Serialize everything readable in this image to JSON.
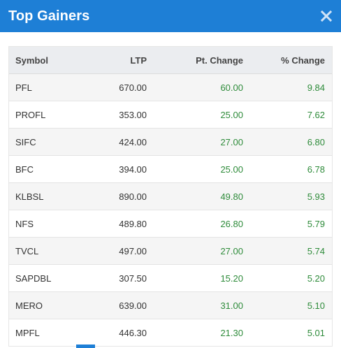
{
  "modal": {
    "title": "Top Gainers",
    "close_icon": "close-x-icon"
  },
  "table": {
    "headers": {
      "symbol": "Symbol",
      "ltp": "LTP",
      "pt_change": "Pt. Change",
      "pct_change": "% Change"
    },
    "rows": [
      {
        "symbol": "PFL",
        "ltp": "670.00",
        "pt_change": "60.00",
        "pct_change": "9.84"
      },
      {
        "symbol": "PROFL",
        "ltp": "353.00",
        "pt_change": "25.00",
        "pct_change": "7.62"
      },
      {
        "symbol": "SIFC",
        "ltp": "424.00",
        "pt_change": "27.00",
        "pct_change": "6.80"
      },
      {
        "symbol": "BFC",
        "ltp": "394.00",
        "pt_change": "25.00",
        "pct_change": "6.78"
      },
      {
        "symbol": "KLBSL",
        "ltp": "890.00",
        "pt_change": "49.80",
        "pct_change": "5.93"
      },
      {
        "symbol": "NFS",
        "ltp": "489.80",
        "pt_change": "26.80",
        "pct_change": "5.79"
      },
      {
        "symbol": "TVCL",
        "ltp": "497.00",
        "pt_change": "27.00",
        "pct_change": "5.74"
      },
      {
        "symbol": "SAPDBL",
        "ltp": "307.50",
        "pt_change": "15.20",
        "pct_change": "5.20"
      },
      {
        "symbol": "MERO",
        "ltp": "639.00",
        "pt_change": "31.00",
        "pct_change": "5.10"
      },
      {
        "symbol": "MPFL",
        "ltp": "446.30",
        "pt_change": "21.30",
        "pct_change": "5.01"
      }
    ]
  },
  "colors": {
    "header_bg": "#1e7fd6",
    "gain": "#2e8b3a",
    "table_head_bg": "#ebedf0",
    "row_stripe": "#f5f5f5"
  }
}
